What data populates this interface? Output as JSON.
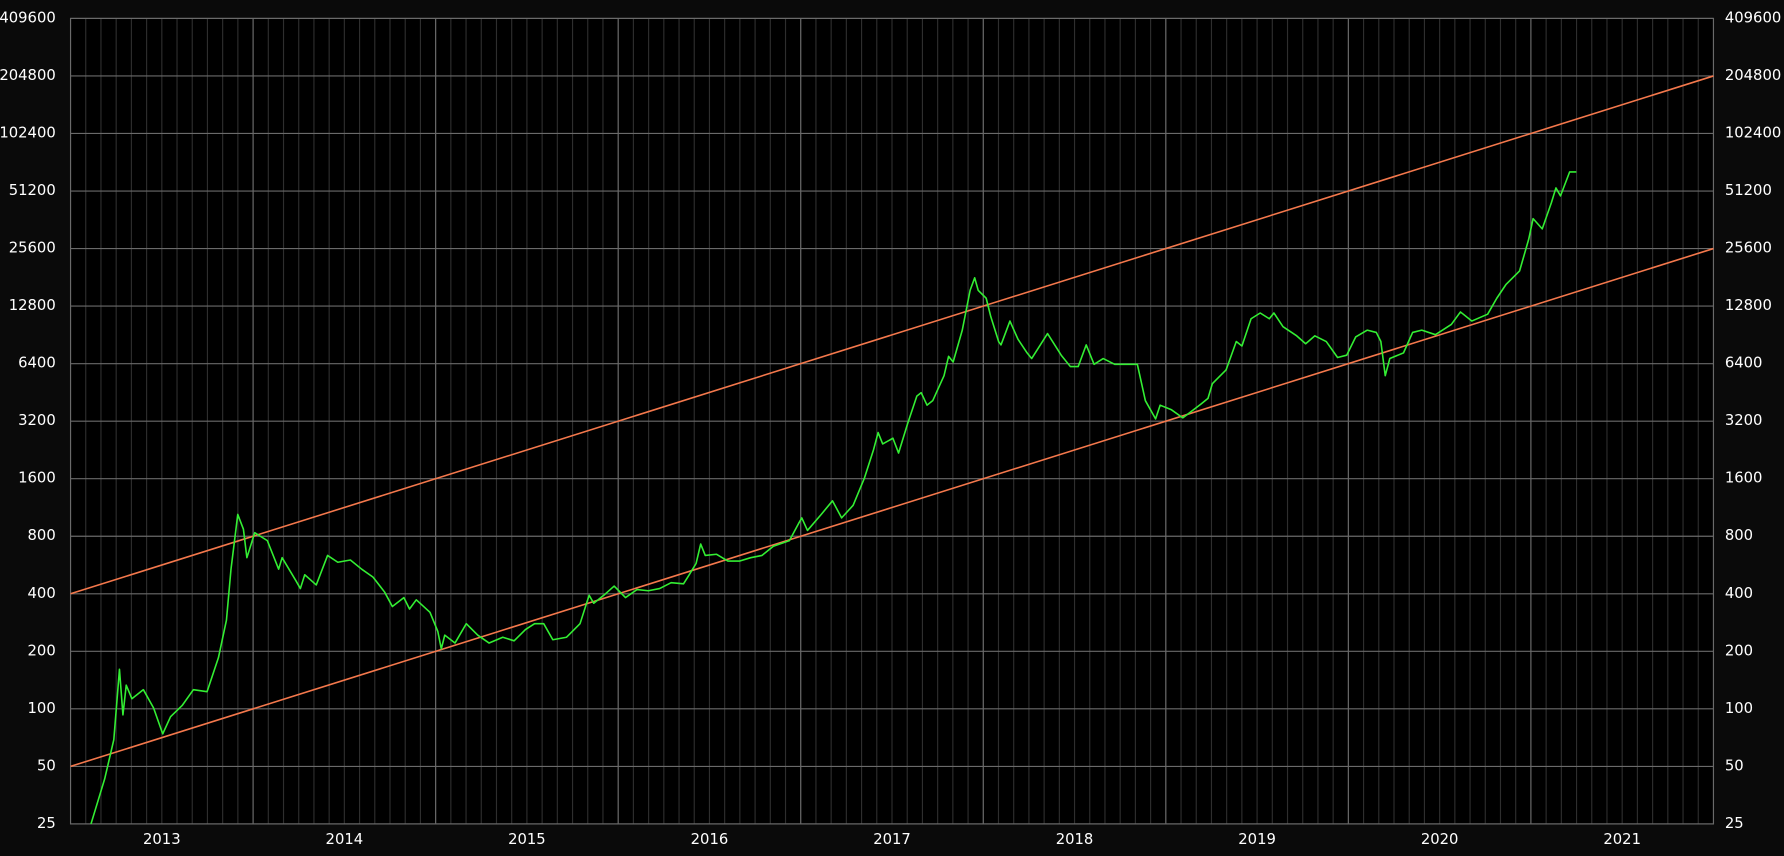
{
  "chart_data": {
    "type": "line",
    "log_scale": "y",
    "grid": true,
    "xlim": [
      2013,
      2022
    ],
    "xgrid": [
      2014,
      2015,
      2016,
      2017,
      2018,
      2019,
      2020,
      2021
    ],
    "xticks": [
      {
        "value": 2013.5,
        "label": "2013"
      },
      {
        "value": 2014.5,
        "label": "2014"
      },
      {
        "value": 2015.5,
        "label": "2015"
      },
      {
        "value": 2016.5,
        "label": "2016"
      },
      {
        "value": 2017.5,
        "label": "2017"
      },
      {
        "value": 2018.5,
        "label": "2018"
      },
      {
        "value": 2019.5,
        "label": "2019"
      },
      {
        "value": 2020.5,
        "label": "2020"
      },
      {
        "value": 2021.5,
        "label": "2021"
      }
    ],
    "ylim": [
      25,
      409600
    ],
    "yticks": [
      25,
      50,
      100,
      200,
      400,
      800,
      1600,
      3200,
      6400,
      12800,
      25600,
      51200,
      102400,
      204800,
      409600
    ],
    "series": [
      {
        "color": "#f4784c",
        "x": [
          2013,
          2022
        ],
        "values": [
          400,
          204800
        ]
      },
      {
        "color": "#f4784c",
        "x": [
          2013,
          2022
        ],
        "values": [
          50,
          25600
        ]
      },
      {
        "color": "#33ee33",
        "x": [
          2013.112,
          2013.187,
          2013.237,
          2013.268,
          2013.287,
          2013.305,
          2013.336,
          2013.399,
          2013.455,
          2013.505,
          2013.548,
          2013.611,
          2013.673,
          2013.748,
          2013.81,
          2013.854,
          2013.879,
          2013.916,
          2013.947,
          2013.966,
          2014.009,
          2014.078,
          2014.14,
          2014.159,
          2014.234,
          2014.259,
          2014.283,
          2014.346,
          2014.408,
          2014.464,
          2014.533,
          2014.595,
          2014.657,
          2014.72,
          2014.763,
          2014.826,
          2014.857,
          2014.894,
          2014.969,
          2015.012,
          2015.031,
          2015.05,
          2015.106,
          2015.168,
          2015.231,
          2015.293,
          2015.368,
          2015.43,
          2015.492,
          2015.542,
          2015.592,
          2015.642,
          2015.717,
          2015.791,
          2015.841,
          2015.866,
          2015.928,
          2015.978,
          2016.04,
          2016.103,
          2016.165,
          2016.227,
          2016.29,
          2016.358,
          2016.389,
          2016.427,
          2016.452,
          2016.477,
          2016.539,
          2016.601,
          2016.664,
          2016.726,
          2016.788,
          2016.85,
          2016.938,
          2016.988,
          2017.006,
          2017.037,
          2017.112,
          2017.174,
          2017.224,
          2017.287,
          2017.349,
          2017.399,
          2017.424,
          2017.449,
          2017.505,
          2017.536,
          2017.586,
          2017.636,
          2017.66,
          2017.692,
          2017.723,
          2017.785,
          2017.81,
          2017.835,
          2017.885,
          2017.928,
          2017.953,
          2017.972,
          2018.016,
          2018.041,
          2018.084,
          2018.097,
          2018.146,
          2018.19,
          2018.24,
          2018.265,
          2018.352,
          2018.427,
          2018.477,
          2018.52,
          2018.564,
          2018.607,
          2018.657,
          2018.72,
          2018.844,
          2018.888,
          2018.944,
          2018.969,
          2019.031,
          2019.093,
          2019.193,
          2019.231,
          2019.255,
          2019.33,
          2019.386,
          2019.417,
          2019.467,
          2019.517,
          2019.567,
          2019.592,
          2019.642,
          2019.717,
          2019.766,
          2019.816,
          2019.879,
          2019.941,
          2019.991,
          2020.04,
          2020.103,
          2020.153,
          2020.178,
          2020.202,
          2020.227,
          2020.302,
          2020.352,
          2020.402,
          2020.477,
          2020.564,
          2020.614,
          2020.676,
          2020.763,
          2020.813,
          2020.863,
          2020.938,
          2020.988,
          2021.012,
          2021.062,
          2021.112,
          2021.137,
          2021.162,
          2021.212,
          2021.249
        ],
        "values": [
          25,
          43,
          69,
          161,
          93,
          133,
          113,
          126,
          101,
          74,
          91,
          104,
          126,
          123,
          185,
          291,
          538,
          1040,
          871,
          618,
          835,
          759,
          538,
          618,
          469,
          426,
          503,
          445,
          635,
          585,
          601,
          538,
          489,
          409,
          343,
          382,
          333,
          372,
          320,
          254,
          206,
          243,
          221,
          279,
          243,
          221,
          237,
          227,
          260,
          279,
          279,
          230,
          237,
          279,
          393,
          357,
          398,
          439,
          382,
          421,
          415,
          426,
          457,
          451,
          503,
          577,
          728,
          635,
          644,
          593,
          593,
          618,
          635,
          709,
          759,
          932,
          998,
          858,
          1040,
          1226,
          998,
          1161,
          1613,
          2272,
          2790,
          2433,
          2605,
          2180,
          3115,
          4327,
          4510,
          3880,
          4096,
          5536,
          6988,
          6527,
          9582,
          15490,
          18000,
          15490,
          14070,
          11290,
          8352,
          8020,
          10690,
          8590,
          7285,
          6805,
          9198,
          7085,
          6178,
          6178,
          8020,
          6350,
          6805,
          6350,
          6350,
          4096,
          3290,
          3880,
          3670,
          3330,
          3933,
          4211,
          5030,
          5930,
          8352,
          7910,
          10990,
          11780,
          10990,
          11780,
          9984,
          8945,
          8130,
          8945,
          8352,
          6890,
          7085,
          8825,
          9582,
          9320,
          8352,
          5536,
          6805,
          7285,
          9320,
          9582,
          9070,
          10260,
          11930,
          10690,
          11610,
          14070,
          16580,
          19560,
          28670,
          36710,
          32460,
          44470,
          53150,
          48280,
          64400,
          64400
        ]
      }
    ]
  }
}
